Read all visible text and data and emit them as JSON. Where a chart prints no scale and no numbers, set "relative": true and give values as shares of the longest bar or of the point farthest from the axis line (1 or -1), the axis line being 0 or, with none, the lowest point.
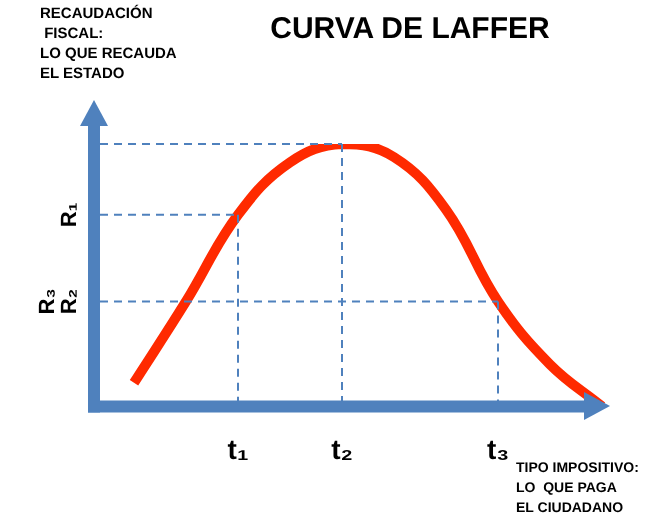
{
  "chart_data": {
    "type": "line",
    "title": "CURVA DE LAFFER",
    "ylabel": "RECAUDACIÓN\n FISCAL:\nLO QUE RECAUDA\nEL ESTADO",
    "xlabel": "TIPO IMPOSITIVO:\nLO  QUE PAGA\nEL CIUDADANO",
    "relative": true,
    "categories": [
      null,
      null,
      "t₁",
      null,
      "t₂",
      null,
      null,
      "t₃",
      null,
      null
    ],
    "series": [
      {
        "color": "#ff2a00",
        "values": [
          0.09,
          0.4,
          0.73,
          0.93,
          1.0,
          0.95,
          0.75,
          0.4,
          0.16,
          0.0
        ]
      }
    ],
    "ref_lines": [
      {
        "axis": "y",
        "value": 1.0,
        "color": "#4f81bd",
        "line_style": "dashed"
      },
      {
        "axis": "y",
        "value": 0.73,
        "label": "R₁",
        "color": "#4f81bd",
        "line_style": "dashed"
      },
      {
        "axis": "y",
        "value": 0.4,
        "label": "R₂",
        "color": "#4f81bd",
        "line_style": "dashed"
      },
      {
        "axis": "x",
        "value": "t₁",
        "color": "#4f81bd",
        "line_style": "dashed"
      },
      {
        "axis": "x",
        "value": "t₂",
        "color": "#4f81bd",
        "line_style": "dashed"
      },
      {
        "axis": "x",
        "value": "t₃",
        "color": "#4f81bd",
        "line_style": "dashed"
      }
    ],
    "annotations": [
      "R₃"
    ],
    "marker": "none",
    "line_style": "solid",
    "grid": false,
    "legend": false
  }
}
